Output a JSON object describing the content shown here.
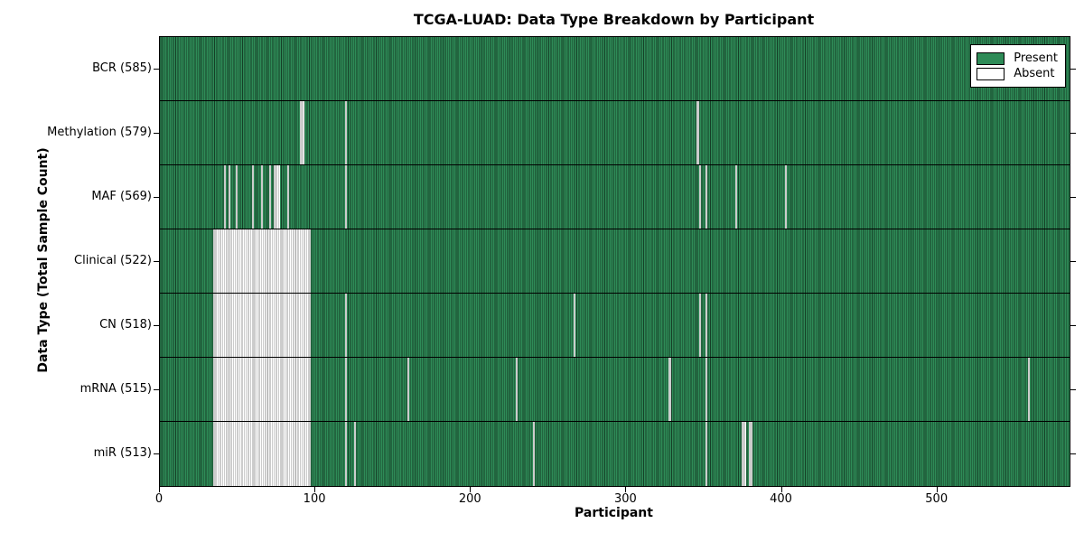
{
  "chart_data": {
    "type": "heatmap",
    "title": "TCGA-LUAD: Data Type Breakdown by Participant",
    "xlabel": "Participant",
    "ylabel": "Data Type (Total Sample Count)",
    "x_range": [
      0,
      585
    ],
    "x_ticks": [
      0,
      100,
      200,
      300,
      400,
      500
    ],
    "grid": false,
    "legend_position": "upper right",
    "legend": [
      {
        "label": "Present",
        "color": "#2e8b57"
      },
      {
        "label": "Absent",
        "color": "#ffffff"
      }
    ],
    "colors": {
      "present_fill": "#2e8b57",
      "present_edge": "rgba(0,0,0,0.55)",
      "absent_fill": "#ffffff",
      "absent_edge": "#9a9a9a",
      "frame": "#000000"
    },
    "rows": [
      {
        "label": "BCR",
        "count": 585,
        "tick": "BCR (585)",
        "absent": []
      },
      {
        "label": "Methylation",
        "count": 579,
        "tick": "Methylation (579)",
        "absent": [
          [
            90,
            92
          ],
          [
            119,
            119
          ],
          [
            345,
            346
          ]
        ]
      },
      {
        "label": "MAF",
        "count": 569,
        "tick": "MAF (569)",
        "absent": [
          [
            41,
            41
          ],
          [
            44,
            44
          ],
          [
            49,
            49
          ],
          [
            59,
            59
          ],
          [
            65,
            65
          ],
          [
            70,
            70
          ],
          [
            73,
            76
          ],
          [
            82,
            82
          ],
          [
            119,
            119
          ],
          [
            347,
            347
          ],
          [
            351,
            351
          ],
          [
            370,
            370
          ],
          [
            402,
            402
          ]
        ]
      },
      {
        "label": "Clinical",
        "count": 522,
        "tick": "Clinical (522)",
        "absent": [
          [
            34,
            96
          ]
        ]
      },
      {
        "label": "CN",
        "count": 518,
        "tick": "CN (518)",
        "absent": [
          [
            34,
            96
          ],
          [
            119,
            119
          ],
          [
            266,
            266
          ],
          [
            347,
            347
          ],
          [
            351,
            351
          ]
        ]
      },
      {
        "label": "mRNA",
        "count": 515,
        "tick": "mRNA (515)",
        "absent": [
          [
            34,
            96
          ],
          [
            119,
            119
          ],
          [
            159,
            159
          ],
          [
            229,
            229
          ],
          [
            327,
            328
          ],
          [
            351,
            351
          ],
          [
            558,
            558
          ]
        ]
      },
      {
        "label": "miR",
        "count": 513,
        "tick": "miR (513)",
        "absent": [
          [
            34,
            96
          ],
          [
            119,
            119
          ],
          [
            125,
            125
          ],
          [
            240,
            240
          ],
          [
            351,
            351
          ],
          [
            374,
            376
          ],
          [
            379,
            380
          ]
        ]
      }
    ]
  }
}
